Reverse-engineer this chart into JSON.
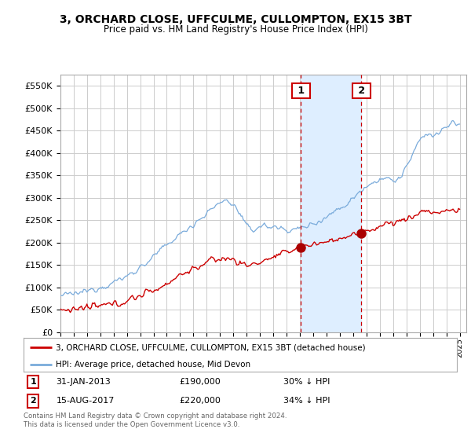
{
  "title": "3, ORCHARD CLOSE, UFFCULME, CULLOMPTON, EX15 3BT",
  "subtitle": "Price paid vs. HM Land Registry's House Price Index (HPI)",
  "ylabel_ticks": [
    "£0",
    "£50K",
    "£100K",
    "£150K",
    "£200K",
    "£250K",
    "£300K",
    "£350K",
    "£400K",
    "£450K",
    "£500K",
    "£550K"
  ],
  "ytick_values": [
    0,
    50000,
    100000,
    150000,
    200000,
    250000,
    300000,
    350000,
    400000,
    450000,
    500000,
    550000
  ],
  "ylim": [
    0,
    575000
  ],
  "xlim_start": 1995.0,
  "xlim_end": 2025.5,
  "hpi_color": "#7aabdb",
  "price_color": "#cc0000",
  "marker_color": "#aa0000",
  "background_color": "#ffffff",
  "grid_color": "#cccccc",
  "span_color": "#deeeff",
  "sale1_date": "31-JAN-2013",
  "sale1_price": 190000,
  "sale1_pct": "30% ↓ HPI",
  "sale1_label": "1",
  "sale1_x": 2013.08,
  "sale2_date": "15-AUG-2017",
  "sale2_price": 220000,
  "sale2_pct": "34% ↓ HPI",
  "sale2_label": "2",
  "sale2_x": 2017.62,
  "legend_line1": "3, ORCHARD CLOSE, UFFCULME, CULLOMPTON, EX15 3BT (detached house)",
  "legend_line2": "HPI: Average price, detached house, Mid Devon",
  "footer": "Contains HM Land Registry data © Crown copyright and database right 2024.\nThis data is licensed under the Open Government Licence v3.0.",
  "xtick_years": [
    1995,
    1996,
    1997,
    1998,
    1999,
    2000,
    2001,
    2002,
    2003,
    2004,
    2005,
    2006,
    2007,
    2008,
    2009,
    2010,
    2011,
    2012,
    2013,
    2014,
    2015,
    2016,
    2017,
    2018,
    2019,
    2020,
    2021,
    2022,
    2023,
    2024,
    2025
  ],
  "fig_width": 6.0,
  "fig_height": 5.6,
  "dpi": 100
}
